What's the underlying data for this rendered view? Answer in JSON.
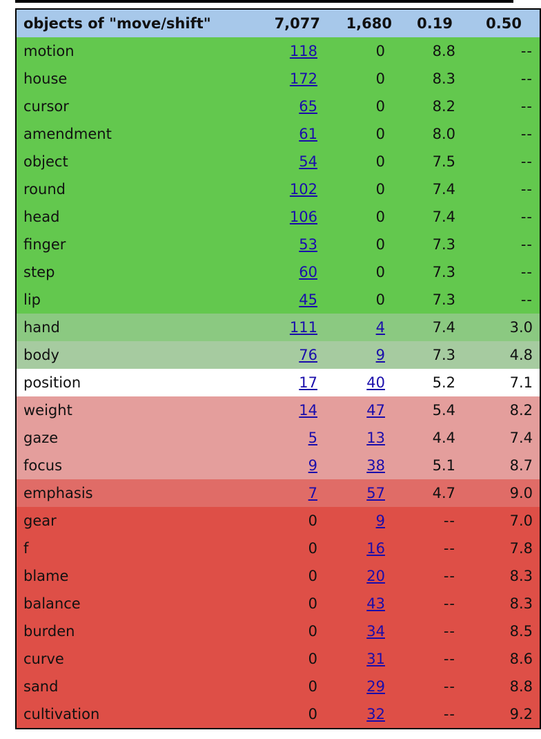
{
  "header": {
    "label": "objects of \"move/shift\"",
    "count1": "7,077",
    "count2": "1,680",
    "score1": "0.19",
    "score2": "0.50"
  },
  "rows": [
    {
      "word": "motion",
      "n1": "118",
      "n2": "0",
      "s1": "8.8",
      "s2": "--",
      "color": "#63c84e",
      "n1_link": true,
      "n2_link": false
    },
    {
      "word": "house",
      "n1": "172",
      "n2": "0",
      "s1": "8.3",
      "s2": "--",
      "color": "#63c84e",
      "n1_link": true,
      "n2_link": false
    },
    {
      "word": "cursor",
      "n1": "65",
      "n2": "0",
      "s1": "8.2",
      "s2": "--",
      "color": "#63c84e",
      "n1_link": true,
      "n2_link": false
    },
    {
      "word": "amendment",
      "n1": "61",
      "n2": "0",
      "s1": "8.0",
      "s2": "--",
      "color": "#63c84e",
      "n1_link": true,
      "n2_link": false
    },
    {
      "word": "object",
      "n1": "54",
      "n2": "0",
      "s1": "7.5",
      "s2": "--",
      "color": "#63c84e",
      "n1_link": true,
      "n2_link": false
    },
    {
      "word": "round",
      "n1": "102",
      "n2": "0",
      "s1": "7.4",
      "s2": "--",
      "color": "#63c84e",
      "n1_link": true,
      "n2_link": false
    },
    {
      "word": "head",
      "n1": "106",
      "n2": "0",
      "s1": "7.4",
      "s2": "--",
      "color": "#63c84e",
      "n1_link": true,
      "n2_link": false
    },
    {
      "word": "finger",
      "n1": "53",
      "n2": "0",
      "s1": "7.3",
      "s2": "--",
      "color": "#63c84e",
      "n1_link": true,
      "n2_link": false
    },
    {
      "word": "step",
      "n1": "60",
      "n2": "0",
      "s1": "7.3",
      "s2": "--",
      "color": "#63c84e",
      "n1_link": true,
      "n2_link": false
    },
    {
      "word": "lip",
      "n1": "45",
      "n2": "0",
      "s1": "7.3",
      "s2": "--",
      "color": "#63c84e",
      "n1_link": true,
      "n2_link": false
    },
    {
      "word": "hand",
      "n1": "111",
      "n2": "4",
      "s1": "7.4",
      "s2": "3.0",
      "color": "#8bc981",
      "n1_link": true,
      "n2_link": true
    },
    {
      "word": "body",
      "n1": "76",
      "n2": "9",
      "s1": "7.3",
      "s2": "4.8",
      "color": "#a6cba0",
      "n1_link": true,
      "n2_link": true
    },
    {
      "word": "position",
      "n1": "17",
      "n2": "40",
      "s1": "5.2",
      "s2": "7.1",
      "color": "#ffffff",
      "n1_link": true,
      "n2_link": true
    },
    {
      "word": "weight",
      "n1": "14",
      "n2": "47",
      "s1": "5.4",
      "s2": "8.2",
      "color": "#e49e9c",
      "n1_link": true,
      "n2_link": true
    },
    {
      "word": "gaze",
      "n1": "5",
      "n2": "13",
      "s1": "4.4",
      "s2": "7.4",
      "color": "#e49e9c",
      "n1_link": true,
      "n2_link": true
    },
    {
      "word": "focus",
      "n1": "9",
      "n2": "38",
      "s1": "5.1",
      "s2": "8.7",
      "color": "#e49e9c",
      "n1_link": true,
      "n2_link": true
    },
    {
      "word": "emphasis",
      "n1": "7",
      "n2": "57",
      "s1": "4.7",
      "s2": "9.0",
      "color": "#e06c67",
      "n1_link": true,
      "n2_link": true
    },
    {
      "word": "gear",
      "n1": "0",
      "n2": "9",
      "s1": "--",
      "s2": "7.0",
      "color": "#de4f47",
      "n1_link": false,
      "n2_link": true
    },
    {
      "word": "f",
      "n1": "0",
      "n2": "16",
      "s1": "--",
      "s2": "7.8",
      "color": "#de4f47",
      "n1_link": false,
      "n2_link": true
    },
    {
      "word": "blame",
      "n1": "0",
      "n2": "20",
      "s1": "--",
      "s2": "8.3",
      "color": "#de4f47",
      "n1_link": false,
      "n2_link": true
    },
    {
      "word": "balance",
      "n1": "0",
      "n2": "43",
      "s1": "--",
      "s2": "8.3",
      "color": "#de4f47",
      "n1_link": false,
      "n2_link": true
    },
    {
      "word": "burden",
      "n1": "0",
      "n2": "34",
      "s1": "--",
      "s2": "8.5",
      "color": "#de4f47",
      "n1_link": false,
      "n2_link": true
    },
    {
      "word": "curve",
      "n1": "0",
      "n2": "31",
      "s1": "--",
      "s2": "8.6",
      "color": "#de4f47",
      "n1_link": false,
      "n2_link": true
    },
    {
      "word": "sand",
      "n1": "0",
      "n2": "29",
      "s1": "--",
      "s2": "8.8",
      "color": "#de4f47",
      "n1_link": false,
      "n2_link": true
    },
    {
      "word": "cultivation",
      "n1": "0",
      "n2": "32",
      "s1": "--",
      "s2": "9.2",
      "color": "#de4f47",
      "n1_link": false,
      "n2_link": true
    }
  ],
  "colors": {
    "header": "#a7c8ea",
    "link": "#1a0dab"
  }
}
